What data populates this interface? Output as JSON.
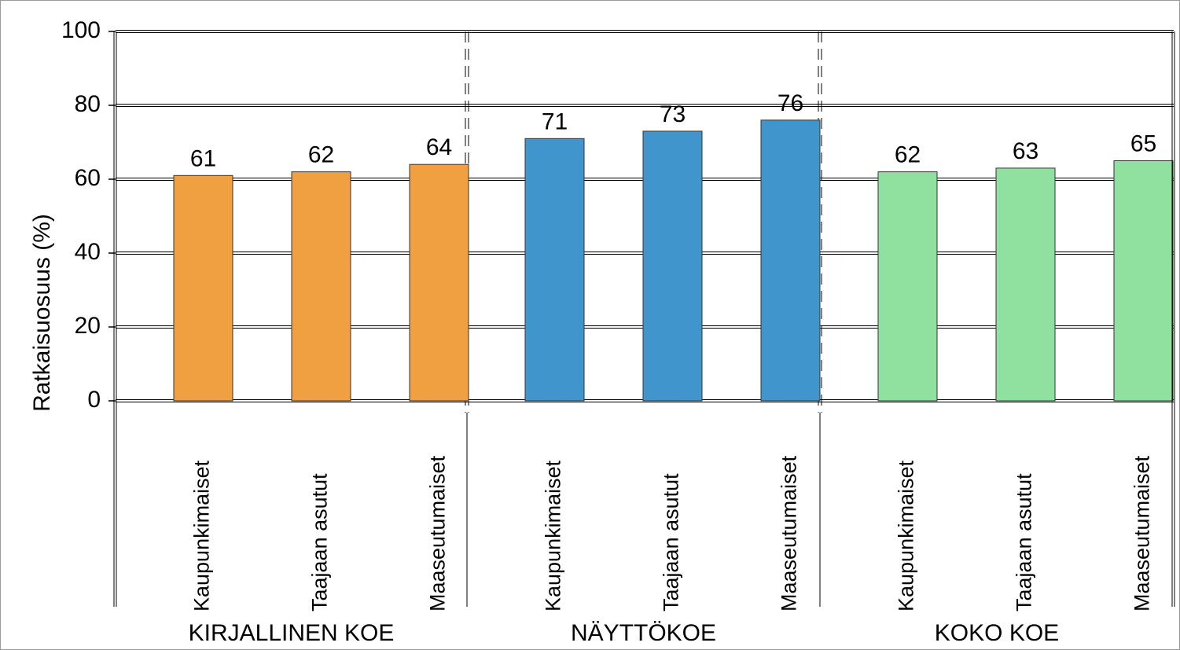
{
  "chart_data": {
    "type": "bar",
    "ylabel": "Ratkaisuosuus (%)",
    "ylim": [
      0,
      100
    ],
    "yticks": [
      "0",
      "20",
      "40",
      "60",
      "80",
      "100"
    ],
    "grid": true,
    "groups": [
      {
        "name": "KIRJALLINEN KOE",
        "color": "#F0A040",
        "categories": [
          "Kaupunkimaiset",
          "Taajaan asutut",
          "Maaseutumaiset"
        ],
        "values": [
          61,
          62,
          64
        ]
      },
      {
        "name": "NÄYTTÖKOE",
        "color": "#4096CC",
        "categories": [
          "Kaupunkimaiset",
          "Taajaan asutut",
          "Maaseutumaiset"
        ],
        "values": [
          71,
          73,
          76
        ]
      },
      {
        "name": "KOKO KOE",
        "color": "#90E0A0",
        "categories": [
          "Kaupunkimaiset",
          "Taajaan asutut",
          "Maaseutumaiset"
        ],
        "values": [
          62,
          63,
          65
        ]
      }
    ]
  }
}
